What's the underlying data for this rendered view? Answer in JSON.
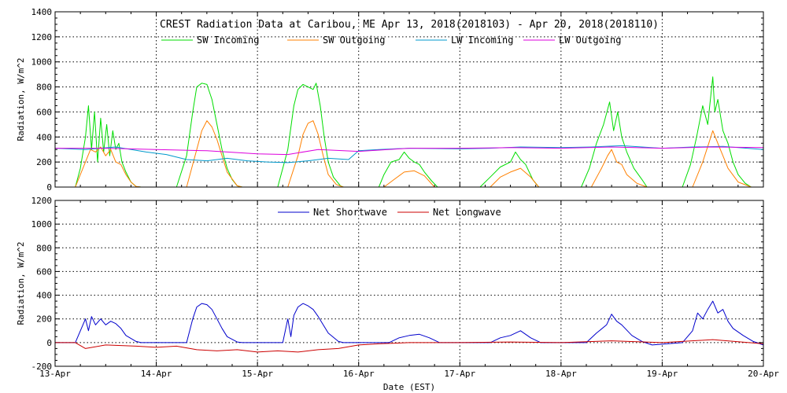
{
  "chart_data": [
    {
      "type": "line",
      "title": "CREST Radiation Data at Caribou, ME   Apr 13, 2018(2018103) - Apr 20, 2018(2018110)",
      "xlabel": "",
      "ylabel": "Radiation, W/m^2",
      "xlim": [
        0,
        7
      ],
      "ylim": [
        0,
        1400
      ],
      "y_ticks": [
        0,
        200,
        400,
        600,
        800,
        1000,
        1200,
        1400
      ],
      "grid": true,
      "legend_position": "top",
      "series": [
        {
          "name": "SW Incoming",
          "color": "#00dd00",
          "x": [
            0.2,
            0.25,
            0.3,
            0.33,
            0.36,
            0.39,
            0.42,
            0.45,
            0.48,
            0.51,
            0.54,
            0.57,
            0.6,
            0.63,
            0.66,
            0.7,
            0.75,
            0.8,
            0.85,
            1.2,
            1.3,
            1.36,
            1.4,
            1.45,
            1.5,
            1.55,
            1.6,
            1.65,
            1.7,
            1.75,
            1.8,
            1.85,
            2.2,
            2.3,
            2.36,
            2.4,
            2.45,
            2.5,
            2.55,
            2.58,
            2.62,
            2.66,
            2.7,
            2.75,
            2.82,
            2.85,
            3.2,
            3.25,
            3.32,
            3.4,
            3.45,
            3.5,
            3.55,
            3.6,
            3.65,
            3.72,
            3.78,
            4.2,
            4.3,
            4.4,
            4.5,
            4.55,
            4.6,
            4.65,
            4.72,
            4.78,
            5.2,
            5.28,
            5.35,
            5.42,
            5.48,
            5.52,
            5.56,
            5.6,
            5.65,
            5.72,
            5.8,
            5.85,
            6.2,
            6.28,
            6.34,
            6.4,
            6.45,
            6.5,
            6.52,
            6.55,
            6.6,
            6.65,
            6.7,
            6.75,
            6.82,
            6.88
          ],
          "values": [
            0,
            150,
            400,
            650,
            300,
            600,
            200,
            550,
            280,
            500,
            250,
            450,
            300,
            350,
            200,
            120,
            40,
            5,
            0,
            0,
            250,
            600,
            800,
            830,
            820,
            700,
            500,
            300,
            150,
            60,
            10,
            0,
            0,
            300,
            650,
            780,
            820,
            800,
            780,
            830,
            650,
            400,
            200,
            80,
            10,
            0,
            0,
            100,
            200,
            220,
            280,
            230,
            200,
            180,
            120,
            50,
            0,
            0,
            80,
            160,
            200,
            280,
            220,
            180,
            60,
            0,
            0,
            150,
            350,
            500,
            680,
            450,
            600,
            400,
            280,
            150,
            60,
            0,
            0,
            180,
            400,
            650,
            500,
            880,
            600,
            700,
            450,
            350,
            200,
            100,
            30,
            0
          ]
        },
        {
          "name": "SW Outgoing",
          "color": "#ff8000",
          "x": [
            0.2,
            0.3,
            0.35,
            0.4,
            0.45,
            0.5,
            0.55,
            0.6,
            0.65,
            0.7,
            0.75,
            0.8,
            0.85,
            1.3,
            1.4,
            1.45,
            1.5,
            1.55,
            1.6,
            1.65,
            1.7,
            1.8,
            1.85,
            2.3,
            2.4,
            2.45,
            2.5,
            2.55,
            2.6,
            2.65,
            2.7,
            2.78,
            2.85,
            3.25,
            3.35,
            3.45,
            3.55,
            3.65,
            3.75,
            4.3,
            4.4,
            4.5,
            4.6,
            4.7,
            4.78,
            5.3,
            5.4,
            5.46,
            5.5,
            5.55,
            5.6,
            5.65,
            5.75,
            5.85,
            6.3,
            6.4,
            6.46,
            6.5,
            6.55,
            6.6,
            6.65,
            6.75,
            6.88
          ],
          "values": [
            0,
            200,
            300,
            280,
            320,
            250,
            300,
            200,
            180,
            100,
            40,
            5,
            0,
            0,
            300,
            450,
            530,
            480,
            380,
            250,
            120,
            10,
            0,
            0,
            250,
            420,
            510,
            530,
            420,
            250,
            100,
            20,
            0,
            0,
            60,
            120,
            130,
            90,
            0,
            0,
            80,
            120,
            150,
            80,
            0,
            0,
            150,
            250,
            300,
            200,
            180,
            100,
            30,
            0,
            0,
            200,
            350,
            450,
            350,
            250,
            150,
            40,
            0
          ]
        },
        {
          "name": "LW Incoming",
          "color": "#0099cc",
          "x": [
            0,
            0.3,
            0.6,
            0.9,
            1.1,
            1.3,
            1.5,
            1.7,
            1.9,
            2.1,
            2.3,
            2.5,
            2.7,
            2.9,
            3.0,
            3.2,
            3.5,
            4.0,
            4.3,
            4.6,
            5.0,
            5.3,
            5.6,
            6.0,
            6.3,
            6.6,
            7.0
          ],
          "values": [
            310,
            300,
            320,
            280,
            260,
            220,
            210,
            230,
            210,
            200,
            195,
            210,
            230,
            220,
            290,
            300,
            310,
            305,
            310,
            320,
            315,
            320,
            330,
            310,
            320,
            325,
            300
          ]
        },
        {
          "name": "LW Outgoing",
          "color": "#dd00dd",
          "x": [
            0,
            0.5,
            1.0,
            1.5,
            2.0,
            2.3,
            2.6,
            3.0,
            3.5,
            4.0,
            4.5,
            5.0,
            5.5,
            6.0,
            6.5,
            7.0
          ],
          "values": [
            310,
            310,
            300,
            290,
            265,
            260,
            300,
            285,
            310,
            310,
            315,
            310,
            320,
            310,
            320,
            315
          ]
        }
      ]
    },
    {
      "type": "line",
      "title": "",
      "xlabel": "Date (EST)",
      "ylabel": "Radiation, W/m^2",
      "xlim": [
        0,
        7
      ],
      "ylim": [
        -200,
        1200
      ],
      "y_ticks": [
        -200,
        0,
        200,
        400,
        600,
        800,
        1000,
        1200
      ],
      "x_tick_labels": [
        "13-Apr",
        "14-Apr",
        "15-Apr",
        "16-Apr",
        "17-Apr",
        "18-Apr",
        "19-Apr",
        "20-Apr"
      ],
      "grid": true,
      "legend_position": "top",
      "series": [
        {
          "name": "Net Shortwave",
          "color": "#0000cc",
          "x": [
            0,
            0.2,
            0.3,
            0.33,
            0.36,
            0.4,
            0.45,
            0.5,
            0.55,
            0.6,
            0.65,
            0.7,
            0.8,
            0.85,
            1.3,
            1.36,
            1.4,
            1.45,
            1.5,
            1.55,
            1.6,
            1.65,
            1.7,
            1.8,
            1.85,
            2.25,
            2.3,
            2.33,
            2.36,
            2.4,
            2.45,
            2.5,
            2.55,
            2.6,
            2.65,
            2.7,
            2.8,
            2.85,
            3.3,
            3.4,
            3.5,
            3.6,
            3.7,
            3.8,
            4.3,
            4.4,
            4.5,
            4.6,
            4.7,
            4.8,
            5.25,
            5.35,
            5.45,
            5.5,
            5.55,
            5.6,
            5.7,
            5.8,
            5.9,
            6.2,
            6.3,
            6.35,
            6.4,
            6.45,
            6.5,
            6.55,
            6.6,
            6.65,
            6.7,
            6.8,
            6.9,
            7.0
          ],
          "values": [
            0,
            0,
            200,
            100,
            220,
            150,
            200,
            150,
            180,
            160,
            120,
            60,
            10,
            0,
            0,
            200,
            300,
            330,
            320,
            280,
            200,
            120,
            50,
            5,
            0,
            0,
            200,
            50,
            230,
            300,
            330,
            310,
            280,
            220,
            150,
            80,
            10,
            0,
            0,
            40,
            60,
            70,
            40,
            0,
            0,
            40,
            60,
            100,
            40,
            0,
            0,
            80,
            150,
            240,
            180,
            150,
            60,
            10,
            -20,
            0,
            100,
            250,
            200,
            280,
            350,
            250,
            280,
            180,
            120,
            60,
            10,
            -20
          ]
        },
        {
          "name": "Net Longwave",
          "color": "#cc0000",
          "x": [
            0,
            0.2,
            0.3,
            0.5,
            0.8,
            1.0,
            1.2,
            1.4,
            1.6,
            1.8,
            2.0,
            2.2,
            2.4,
            2.6,
            2.8,
            3.0,
            3.2,
            3.5,
            4.0,
            4.5,
            5.0,
            5.5,
            6.0,
            6.5,
            7.0
          ],
          "values": [
            0,
            0,
            -50,
            -20,
            -30,
            -40,
            -30,
            -60,
            -70,
            -60,
            -80,
            -70,
            -80,
            -60,
            -50,
            -20,
            -10,
            0,
            0,
            5,
            0,
            15,
            0,
            25,
            -10
          ]
        }
      ]
    }
  ]
}
